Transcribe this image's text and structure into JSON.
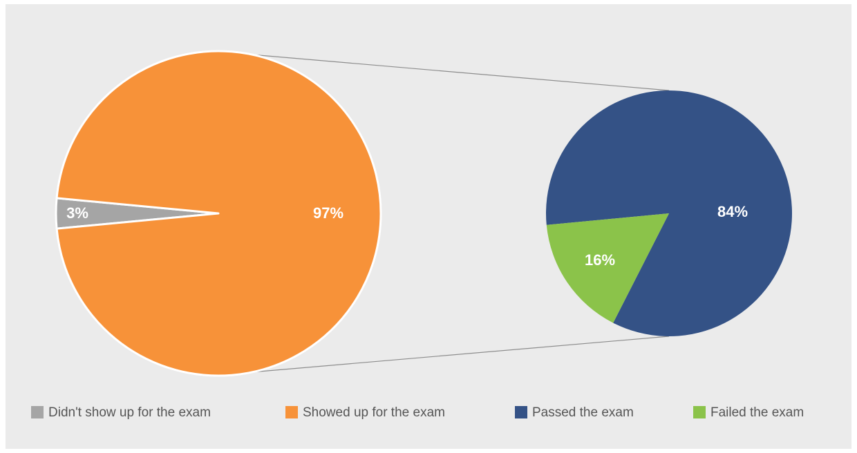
{
  "chart_data": [
    {
      "type": "pie",
      "categories": [
        "Didn't show up for the exam",
        "Showed up for the exam"
      ],
      "values": [
        3,
        97
      ],
      "value_labels": [
        "3%",
        "97%"
      ],
      "colors": [
        "#a5a5a5",
        "#f79239"
      ]
    },
    {
      "type": "pie",
      "categories": [
        "Passed the exam",
        "Failed the exam"
      ],
      "values": [
        84,
        16
      ],
      "value_labels": [
        "84%",
        "16%"
      ],
      "colors": [
        "#345286",
        "#8bc34a"
      ]
    }
  ]
}
